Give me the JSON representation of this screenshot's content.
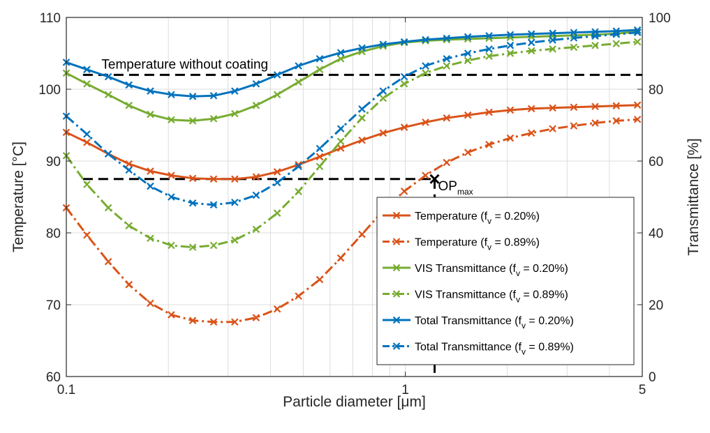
{
  "chart_data": {
    "type": "line",
    "x_scale": "log",
    "xlabel": "Particle diameter [μm]",
    "xlim": [
      0.1,
      5
    ],
    "x_ticks": [
      0.1,
      1,
      5
    ],
    "x_tick_labels": [
      "0.1",
      "1",
      "5"
    ],
    "ylabel_left": "Temperature [°C]",
    "ylim_left": [
      60,
      110
    ],
    "y_ticks_left": [
      "60",
      "70",
      "80",
      "90",
      "100",
      "110"
    ],
    "ylabel_right": "Transmittance [%]",
    "ylim_right": [
      0,
      100
    ],
    "y_ticks_right": [
      "0",
      "20",
      "40",
      "60",
      "80",
      "100"
    ],
    "grid": true,
    "legend_position": "bottom-right",
    "x": [
      0.1,
      0.115,
      0.133,
      0.153,
      0.177,
      0.204,
      0.236,
      0.272,
      0.314,
      0.363,
      0.419,
      0.484,
      0.559,
      0.645,
      0.745,
      0.86,
      0.993,
      1.147,
      1.324,
      1.529,
      1.766,
      2.04,
      2.355,
      2.72,
      3.14,
      3.63,
      4.19,
      4.84
    ],
    "series": [
      {
        "name_main": "Temperature (f",
        "name_sub": "v",
        "name_tail": " = 0.20%)",
        "axis": "left",
        "color": "#d95319",
        "dash": "solid",
        "values": [
          94.0,
          92.6,
          91.0,
          89.6,
          88.6,
          88.0,
          87.6,
          87.5,
          87.5,
          87.8,
          88.5,
          89.5,
          90.6,
          91.8,
          92.9,
          93.9,
          94.7,
          95.4,
          96.0,
          96.4,
          96.8,
          97.1,
          97.3,
          97.4,
          97.5,
          97.6,
          97.7,
          97.8
        ]
      },
      {
        "name_main": "Temperature (f",
        "name_sub": "v",
        "name_tail": " = 0.89%)",
        "axis": "left",
        "color": "#d95319",
        "dash": "dashdot",
        "values": [
          83.5,
          79.7,
          76.0,
          72.8,
          70.2,
          68.6,
          67.8,
          67.6,
          67.6,
          68.2,
          69.4,
          71.2,
          73.5,
          76.5,
          79.8,
          83.1,
          85.8,
          88.0,
          89.8,
          91.2,
          92.3,
          93.2,
          93.9,
          94.5,
          94.9,
          95.3,
          95.6,
          95.8
        ]
      },
      {
        "name_main": "VIS Transmittance (f",
        "name_sub": "v",
        "name_tail": " = 0.20%)",
        "axis": "right",
        "color": "#77ac30",
        "dash": "solid",
        "values": [
          84.5,
          81.5,
          78.5,
          75.5,
          73.0,
          71.5,
          71.2,
          71.8,
          73.2,
          75.5,
          78.5,
          82.0,
          85.5,
          88.5,
          90.5,
          92.0,
          93.0,
          93.5,
          93.8,
          94.0,
          94.2,
          94.4,
          94.6,
          94.8,
          95.0,
          95.2,
          95.5,
          96.0
        ]
      },
      {
        "name_main": "VIS Transmittance (f",
        "name_sub": "v",
        "name_tail": " = 0.89%)",
        "axis": "right",
        "color": "#77ac30",
        "dash": "dashdot",
        "values": [
          61.5,
          53.5,
          47.0,
          42.0,
          38.5,
          36.5,
          36.0,
          36.5,
          38.0,
          41.0,
          45.5,
          51.5,
          58.5,
          65.5,
          72.0,
          77.5,
          81.5,
          84.5,
          86.5,
          88.0,
          89.2,
          90.0,
          90.7,
          91.2,
          91.7,
          92.2,
          92.7,
          93.2
        ]
      },
      {
        "name_main": "Total Transmittance (f",
        "name_sub": "v",
        "name_tail": " = 0.20%)",
        "axis": "right",
        "color": "#0072bd",
        "dash": "solid",
        "values": [
          87.5,
          85.5,
          83.5,
          81.2,
          79.5,
          78.5,
          78.0,
          78.2,
          79.5,
          81.5,
          84.0,
          86.5,
          88.5,
          90.2,
          91.5,
          92.5,
          93.2,
          93.8,
          94.2,
          94.6,
          94.9,
          95.2,
          95.4,
          95.6,
          95.8,
          96.0,
          96.2,
          96.5
        ]
      },
      {
        "name_main": "Total Transmittance (f",
        "name_sub": "v",
        "name_tail": " = 0.89%)",
        "axis": "right",
        "color": "#0072bd",
        "dash": "dashdot",
        "values": [
          72.5,
          67.5,
          62.0,
          57.5,
          53.0,
          50.0,
          48.3,
          47.8,
          48.5,
          50.5,
          54.0,
          58.5,
          63.5,
          69.0,
          74.5,
          79.5,
          83.5,
          86.5,
          88.5,
          90.0,
          91.2,
          92.2,
          93.0,
          93.7,
          94.3,
          94.8,
          95.3,
          95.8
        ]
      }
    ],
    "reference_lines": [
      {
        "label": "Temperature without coating",
        "axis": "left",
        "y": 102.0
      },
      {
        "label": "",
        "axis": "left",
        "y": 87.5
      }
    ],
    "annotation": {
      "main": "OP",
      "sub": "max",
      "x": 1.22,
      "y_left": 87.5
    }
  }
}
